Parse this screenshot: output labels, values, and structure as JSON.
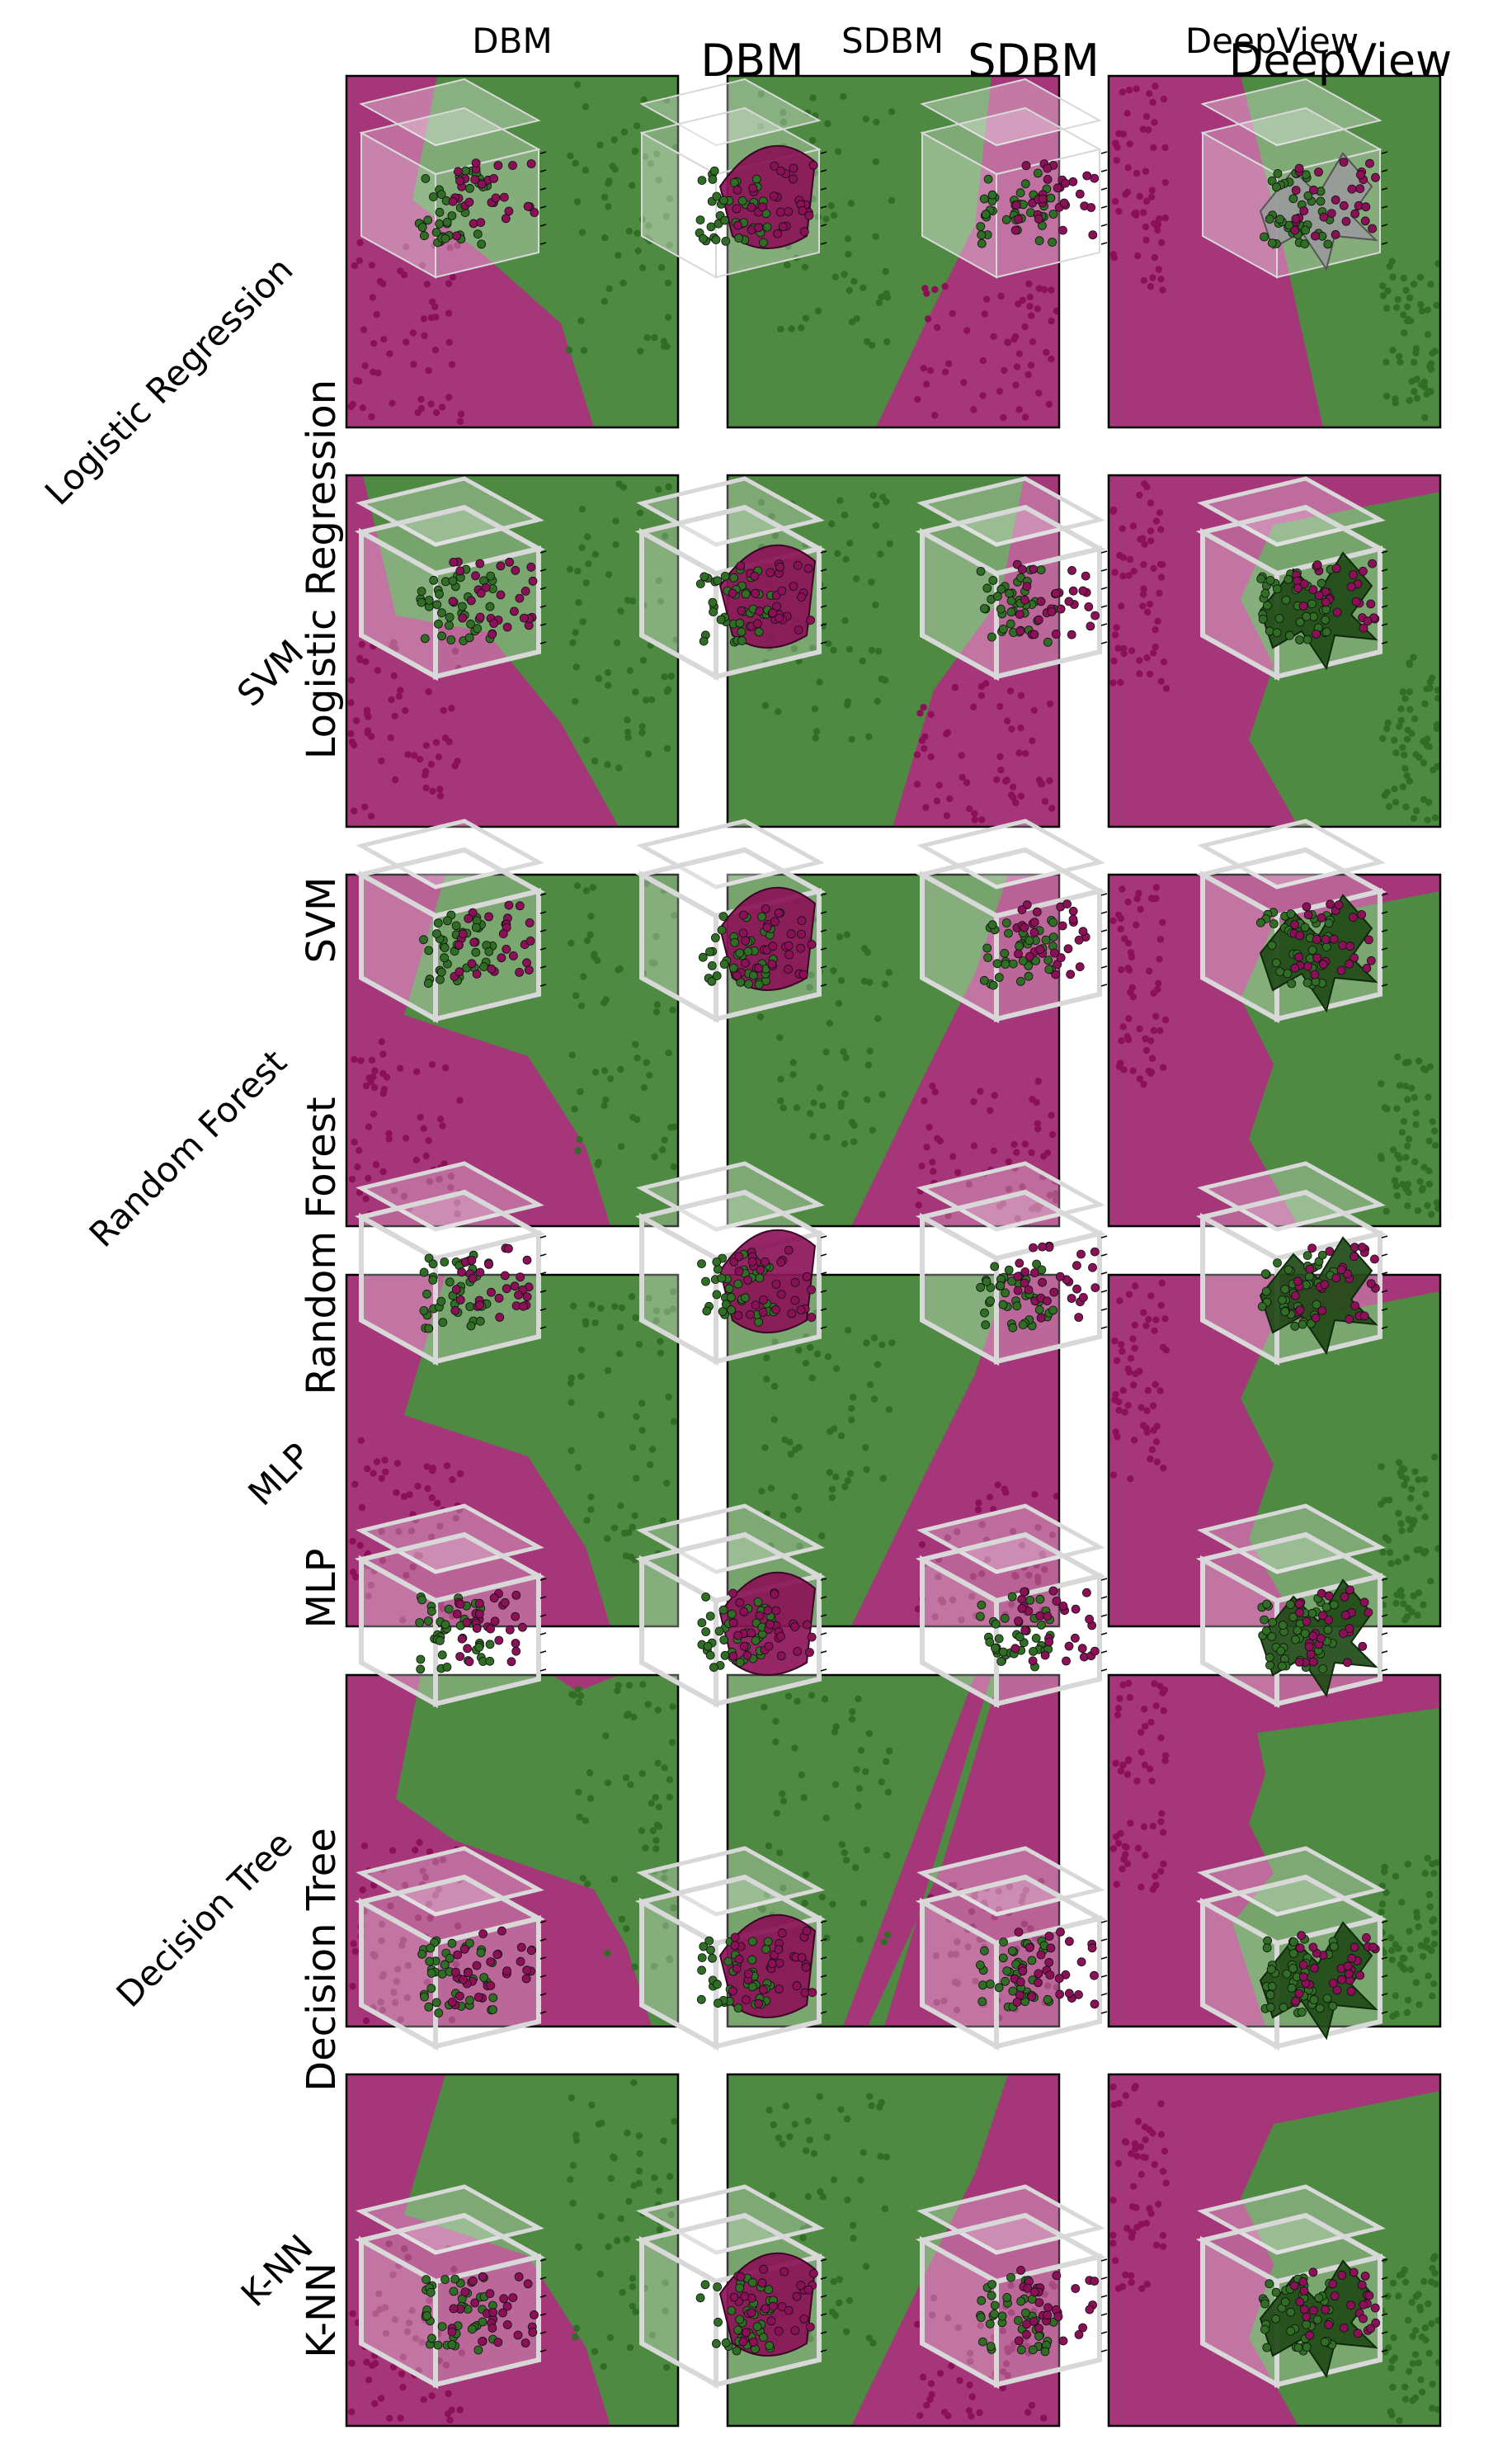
{
  "figure": {
    "col_titles_small": [
      "DBM",
      "SDBM",
      "DeepView"
    ],
    "col_titles_large": [
      "DBM",
      "SDBM",
      "DeepView"
    ],
    "row_labels_rotated": [
      "Logistic Regression",
      "SVM",
      "Random Forest",
      "MLP",
      "Decision Tree",
      "K-NN"
    ],
    "row_labels_vertical": [
      "Logistic Regression",
      "SVM",
      "Random Forest",
      "MLP",
      "Decision Tree",
      "K-NN"
    ]
  },
  "colors": {
    "class_a_region": "#4f8a42",
    "class_b_region": "#a6367a",
    "class_a_points": "#2f6e24",
    "class_b_points": "#8b1057",
    "cube_face": "#ffffff",
    "cube_edge": "#d8d8d8",
    "surface_dbm": "#8b1057",
    "surface_deepview": "#1f4a16"
  }
}
